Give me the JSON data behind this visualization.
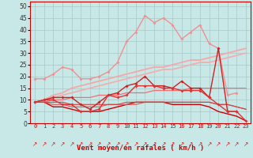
{
  "bg_color": "#c8e8e8",
  "xlabel": "Vent moyen/en rafales ( km/h )",
  "ylim": [
    0,
    52
  ],
  "xlim": [
    -0.5,
    23.5
  ],
  "yticks": [
    0,
    5,
    10,
    15,
    20,
    25,
    30,
    35,
    40,
    45,
    50
  ],
  "xticks": [
    0,
    1,
    2,
    3,
    4,
    5,
    6,
    7,
    8,
    9,
    10,
    11,
    12,
    13,
    14,
    15,
    16,
    17,
    18,
    19,
    20,
    21,
    22,
    23
  ],
  "series": [
    {
      "y": [
        19,
        19,
        21,
        24,
        23,
        19,
        19,
        20,
        22,
        26,
        35,
        39,
        46,
        43,
        45,
        42,
        36,
        39,
        42,
        34,
        32,
        12,
        13,
        null
      ],
      "color": "#f09090",
      "lw": 1.0,
      "marker": "D",
      "ms": 2.0,
      "zorder": 3
    },
    {
      "y": [
        9,
        10,
        11,
        11,
        11,
        8,
        6,
        9,
        12,
        13,
        16,
        17,
        20,
        16,
        16,
        15,
        18,
        15,
        15,
        11,
        32,
        5,
        5,
        null
      ],
      "color": "#cc2222",
      "lw": 1.0,
      "marker": "D",
      "ms": 2.0,
      "zorder": 4
    },
    {
      "y": [
        9,
        10,
        10,
        8,
        8,
        5,
        5,
        6,
        12,
        11,
        12,
        16,
        16,
        16,
        15,
        15,
        14,
        14,
        14,
        11,
        8,
        5,
        5,
        1
      ],
      "color": "#dd3333",
      "lw": 1.0,
      "marker": "D",
      "ms": 2.0,
      "zorder": 4
    },
    {
      "y": [
        9,
        9,
        7,
        7,
        6,
        5,
        5,
        5,
        6,
        7,
        8,
        9,
        9,
        9,
        9,
        8,
        8,
        8,
        8,
        7,
        5,
        4,
        3,
        1
      ],
      "color": "#cc0000",
      "lw": 1.0,
      "marker": null,
      "ms": 0,
      "zorder": 2
    },
    {
      "y": [
        9,
        10,
        12,
        13,
        15,
        16,
        17,
        18,
        19,
        20,
        21,
        22,
        23,
        24,
        24,
        25,
        26,
        27,
        27,
        28,
        29,
        30,
        31,
        32
      ],
      "color": "#f4a8a8",
      "lw": 1.3,
      "marker": null,
      "ms": 0,
      "zorder": 2
    },
    {
      "y": [
        9,
        10,
        11,
        12,
        13,
        14,
        15,
        16,
        17,
        18,
        19,
        20,
        21,
        22,
        23,
        23,
        24,
        25,
        26,
        26,
        27,
        28,
        29,
        30
      ],
      "color": "#f0b0b0",
      "lw": 1.3,
      "marker": null,
      "ms": 0,
      "zorder": 2
    },
    {
      "y": [
        9,
        9,
        10,
        10,
        11,
        11,
        11,
        12,
        12,
        12,
        13,
        13,
        13,
        14,
        14,
        14,
        14,
        15,
        15,
        15,
        15,
        15,
        15,
        15
      ],
      "color": "#ee7070",
      "lw": 0.9,
      "marker": null,
      "ms": 0,
      "zorder": 2
    },
    {
      "y": [
        9,
        9,
        8,
        8,
        7,
        7,
        7,
        7,
        8,
        8,
        8,
        8,
        9,
        9,
        9,
        9,
        9,
        9,
        9,
        9,
        8,
        8,
        7,
        6
      ],
      "color": "#dd5555",
      "lw": 0.8,
      "marker": null,
      "ms": 0,
      "zorder": 2
    },
    {
      "y": [
        9,
        9,
        9,
        9,
        8,
        8,
        8,
        8,
        8,
        8,
        9,
        9,
        9,
        9,
        9,
        9,
        9,
        9,
        9,
        9,
        8,
        8,
        7,
        6
      ],
      "color": "#cc4444",
      "lw": 0.8,
      "marker": null,
      "ms": 0,
      "zorder": 2
    }
  ],
  "arrow_char": "↗",
  "arrow_color": "#cc2222",
  "arrow_fontsize": 5.5
}
